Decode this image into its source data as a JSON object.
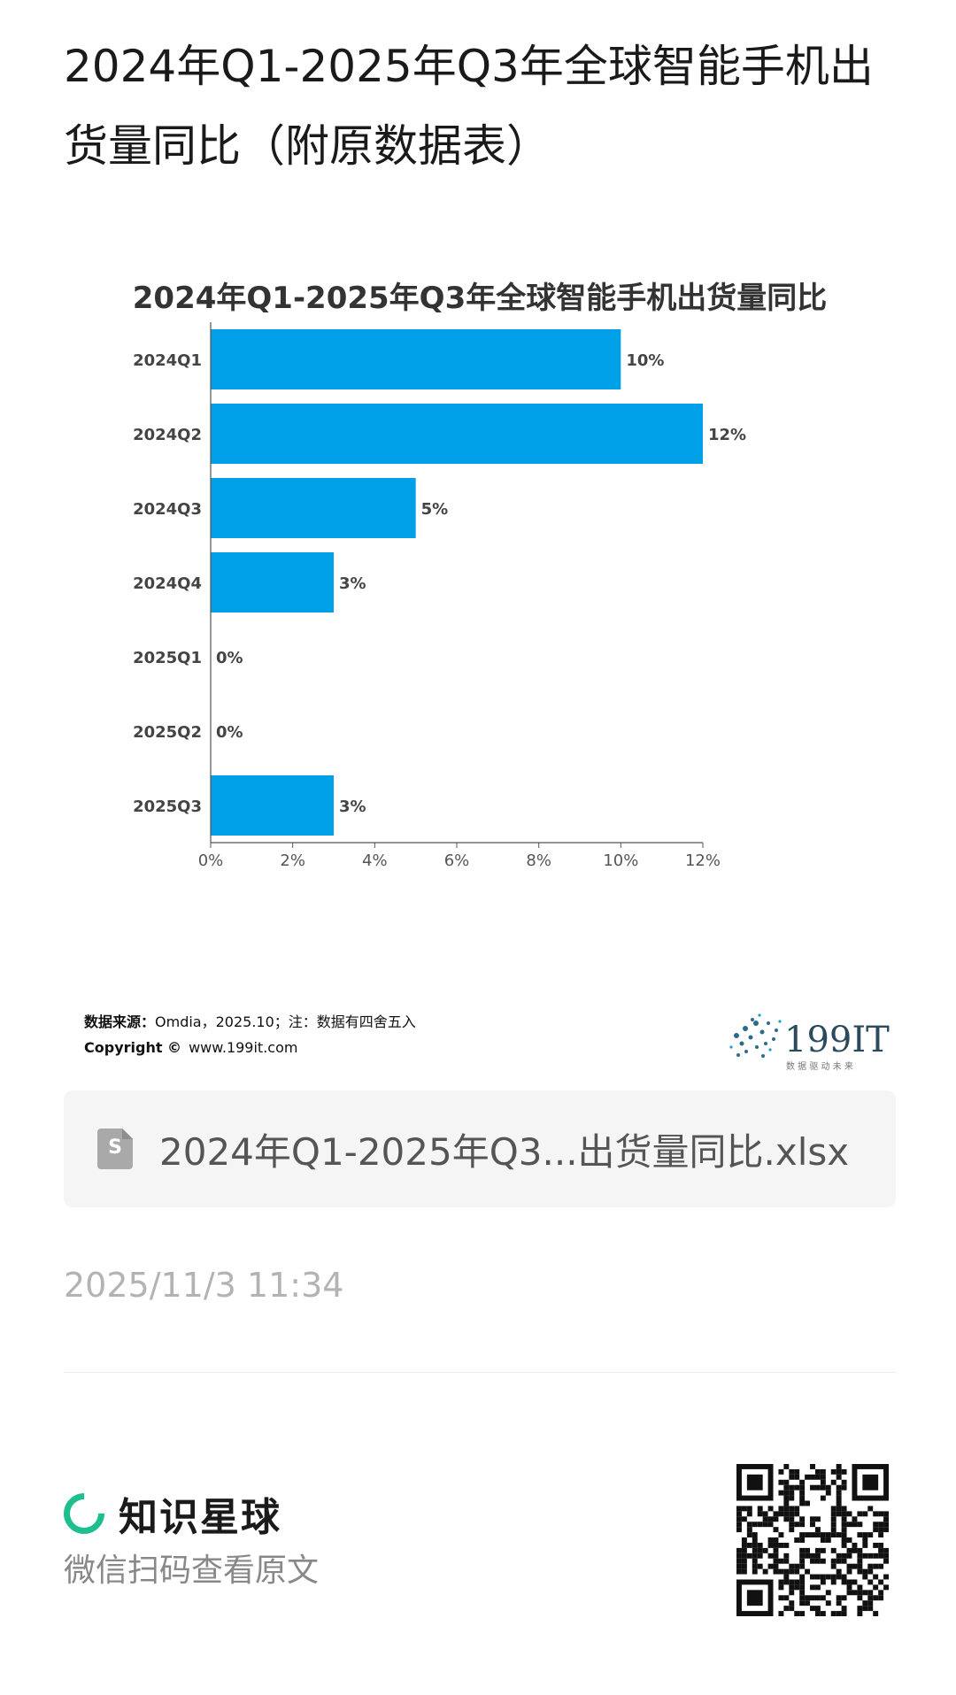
{
  "page": {
    "title": "2024年Q1-2025年Q3年全球智能手机出货量同比（附原数据表）"
  },
  "chart_data": {
    "type": "bar",
    "orientation": "horizontal",
    "title": "2024年Q1-2025年Q3年全球智能手机出货量同比",
    "categories": [
      "2024Q1",
      "2024Q2",
      "2024Q3",
      "2024Q4",
      "2025Q1",
      "2025Q2",
      "2025Q3"
    ],
    "values": [
      10,
      12,
      5,
      3,
      0,
      0,
      3
    ],
    "value_labels": [
      "10%",
      "12%",
      "5%",
      "3%",
      "0%",
      "0%",
      "3%"
    ],
    "xlim": [
      0,
      12
    ],
    "xticks": [
      "0%",
      "2%",
      "4%",
      "6%",
      "8%",
      "10%",
      "12%"
    ],
    "bar_color": "#00a0e9",
    "grid": false,
    "legend": "none"
  },
  "footnote": {
    "source_label": "数据来源：",
    "source_text": "Omdia，2025.10；注：数据有四舍五入",
    "copyright_label": "Copyright ©",
    "copyright_url": "www.199it.com",
    "logo_text": "199IT",
    "logo_tagline": "数 据 驱 动 未 来"
  },
  "attachment": {
    "icon": "file-s-icon",
    "icon_letter": "S",
    "name": "2024年Q1-2025年Q3...出货量同比.xlsx"
  },
  "timestamp": "2025/11/3 11:34",
  "brand": {
    "name": "知识星球",
    "subtitle": "微信扫码查看原文",
    "accent": "#1dbf8e"
  }
}
